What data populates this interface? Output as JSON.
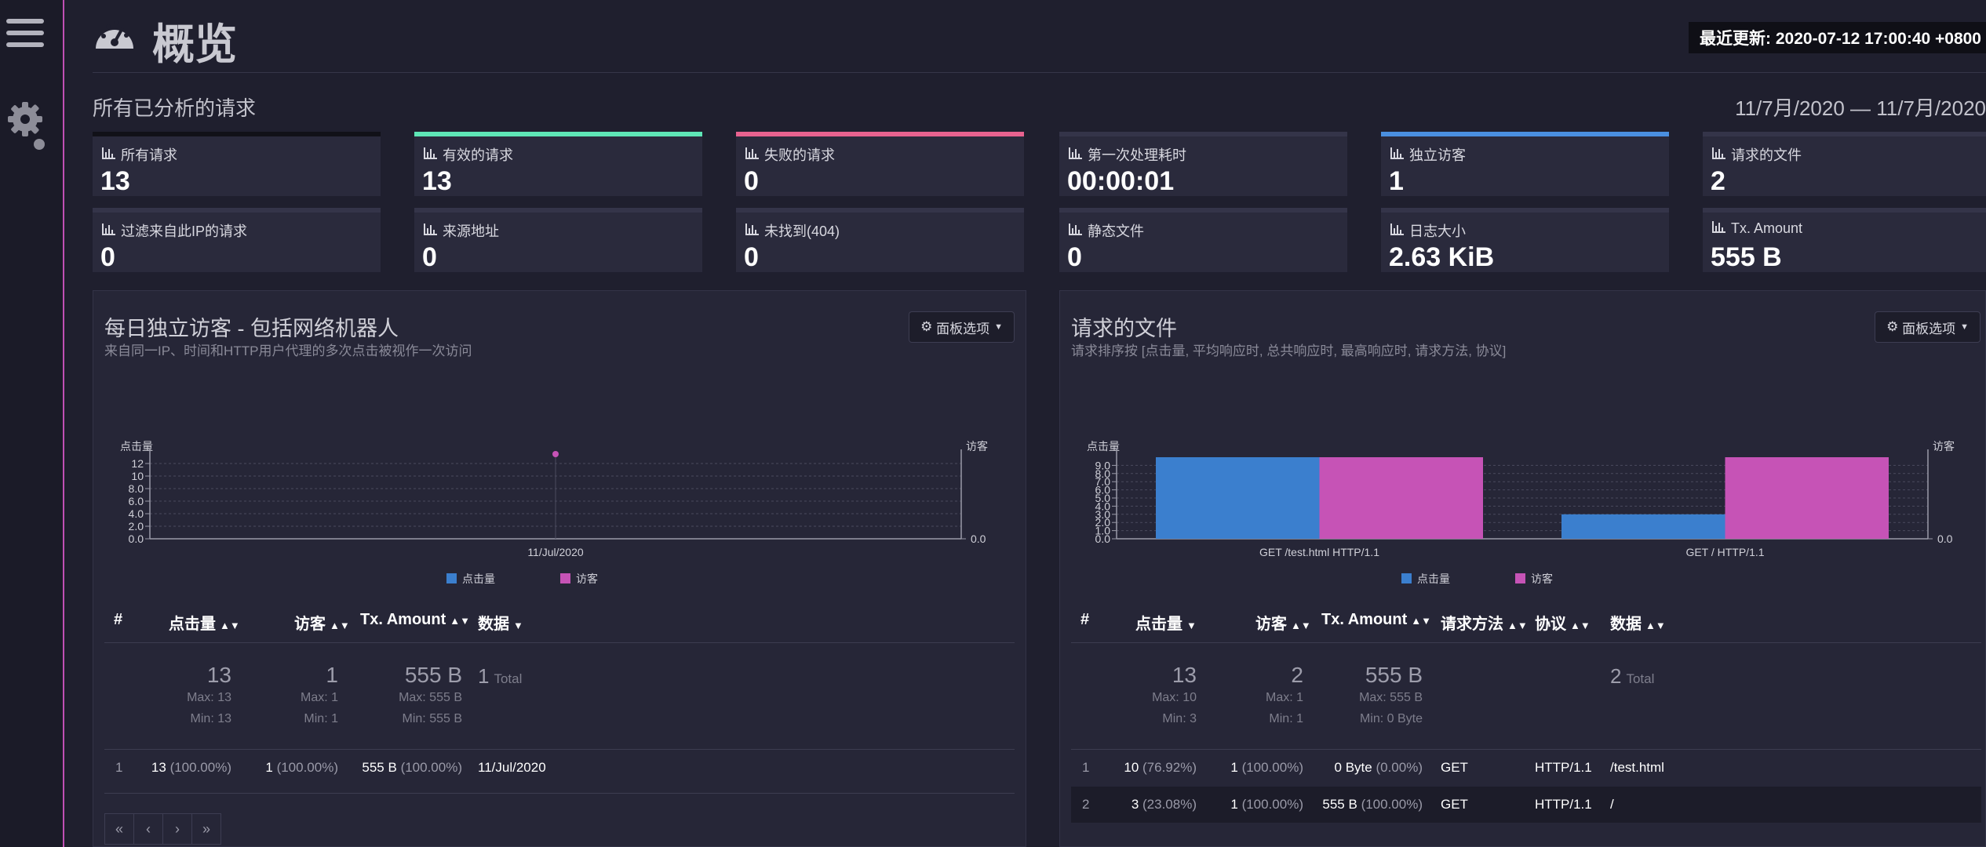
{
  "header": {
    "title": "概览",
    "last_update": "最近更新: 2020-07-12 17:00:40 +0800"
  },
  "section": {
    "title": "所有已分析的请求",
    "date_range": "11/7月/2020 — 11/7月/2020"
  },
  "cards": [
    {
      "label": "所有请求",
      "value": "13",
      "accent": ""
    },
    {
      "label": "有效的请求",
      "value": "13",
      "accent": "#5ee6b6"
    },
    {
      "label": "失败的请求",
      "value": "0",
      "accent": "#e8628f"
    },
    {
      "label": "第一次处理耗时",
      "value": "00:00:01",
      "accent": ""
    },
    {
      "label": "独立访客",
      "value": "1",
      "accent": "#4a8fe0"
    },
    {
      "label": "请求的文件",
      "value": "2",
      "accent": ""
    },
    {
      "label": "过滤来自此IP的请求",
      "value": "0",
      "accent": ""
    },
    {
      "label": "来源地址",
      "value": "0",
      "accent": ""
    },
    {
      "label": "未找到(404)",
      "value": "0",
      "accent": ""
    },
    {
      "label": "静态文件",
      "value": "0",
      "accent": ""
    },
    {
      "label": "日志大小",
      "value": "2.63 KiB",
      "accent": ""
    },
    {
      "label": "Tx. Amount",
      "value": "555 B",
      "accent": ""
    }
  ],
  "panels": {
    "visitors": {
      "title": "每日独立访客 - 包括网络机器人",
      "subtitle": "来自同一IP、时间和HTTP用户代理的多次点击被视作一次访问",
      "options_label": "面板选项",
      "columns": [
        "#",
        "点击量",
        "访客",
        "Tx. Amount",
        "数据"
      ],
      "summary": {
        "hits": "13",
        "visitors": "1",
        "tx": "555 B",
        "data_count": "1",
        "data_label": "Total",
        "hits_max": "Max: 13",
        "hits_min": "Min: 13",
        "vis_max": "Max: 1",
        "vis_min": "Min: 1",
        "tx_max": "Max: 555 B",
        "tx_min": "Min: 555 B"
      },
      "rows": [
        {
          "n": "1",
          "hits": "13",
          "hits_pct": "(100.00%)",
          "vis": "1",
          "vis_pct": "(100.00%)",
          "tx": "555 B",
          "tx_pct": "(100.00%)",
          "data": "11/Jul/2020"
        }
      ],
      "pager": [
        "«",
        "‹",
        "›",
        "»"
      ]
    },
    "files": {
      "title": "请求的文件",
      "subtitle": "请求排序按 [点击量, 平均响应时, 总共响应时, 最高响应时, 请求方法, 协议]",
      "options_label": "面板选项",
      "columns": [
        "#",
        "点击量",
        "访客",
        "Tx. Amount",
        "请求方法",
        "协议",
        "数据"
      ],
      "summary": {
        "hits": "13",
        "visitors": "2",
        "tx": "555 B",
        "data_count": "2",
        "data_label": "Total",
        "hits_max": "Max: 10",
        "hits_min": "Min: 3",
        "vis_max": "Max: 1",
        "vis_min": "Min: 1",
        "tx_max": "Max: 555 B",
        "tx_min": "Min: 0 Byte"
      },
      "rows": [
        {
          "n": "1",
          "hits": "10",
          "hits_pct": "(76.92%)",
          "vis": "1",
          "vis_pct": "(100.00%)",
          "tx": "0 Byte",
          "tx_pct": "(0.00%)",
          "method": "GET",
          "proto": "HTTP/1.1",
          "data": "/test.html"
        },
        {
          "n": "2",
          "hits": "3",
          "hits_pct": "(23.08%)",
          "vis": "1",
          "vis_pct": "(100.00%)",
          "tx": "555 B",
          "tx_pct": "(100.00%)",
          "method": "GET",
          "proto": "HTTP/1.1",
          "data": "/"
        }
      ]
    }
  },
  "chart_data": [
    {
      "type": "line",
      "categories": [
        "11/Jul/2020"
      ],
      "series": [
        {
          "name": "点击量",
          "values": [
            13
          ],
          "color": "#3b7fce"
        },
        {
          "name": "访客",
          "values": [
            1
          ],
          "color": "#c653b6"
        }
      ],
      "ylabel": "点击量",
      "y2label": "访客",
      "ylim": [
        0,
        13
      ],
      "yticks": [
        "12",
        "10",
        "8.0",
        "6.0",
        "4.0",
        "2.0",
        "0.0"
      ],
      "y2ticks": [
        "0.0"
      ],
      "legend": "bottom",
      "grid": true
    },
    {
      "type": "bar",
      "categories": [
        "GET /test.html HTTP/1.1",
        "GET / HTTP/1.1"
      ],
      "series": [
        {
          "name": "点击量",
          "values": [
            10,
            3
          ],
          "color": "#3b7fce"
        },
        {
          "name": "访客",
          "values": [
            1,
            1
          ],
          "color": "#c653b6"
        }
      ],
      "ylabel": "点击量",
      "y2label": "访客",
      "ylim": [
        0,
        10
      ],
      "yticks": [
        "9.0",
        "8.0",
        "7.0",
        "6.0",
        "5.0",
        "4.0",
        "3.0",
        "2.0",
        "1.0",
        "0.0"
      ],
      "y2ticks": [
        "0.0"
      ],
      "legend": "bottom",
      "grid": true
    }
  ]
}
